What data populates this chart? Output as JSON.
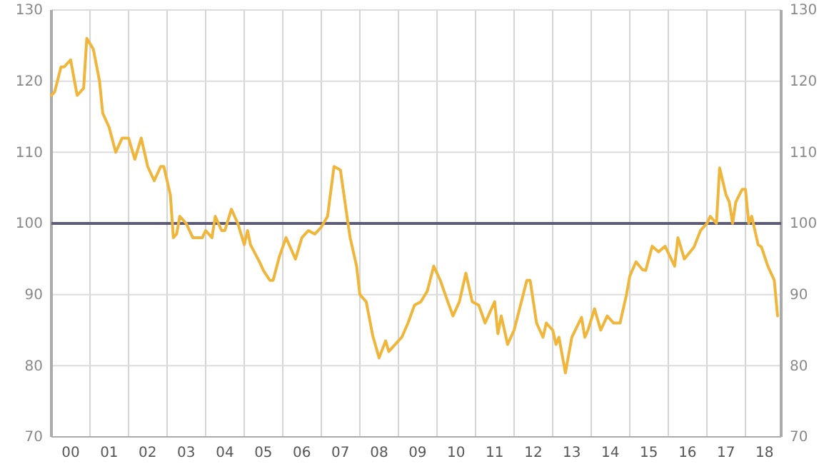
{
  "chart_data": {
    "type": "line",
    "x": [
      "2000-01",
      "2000-02",
      "2000-04",
      "2000-05",
      "2000-07",
      "2000-09",
      "2000-11",
      "2000-12",
      "2001-02",
      "2001-04",
      "2001-05",
      "2001-07",
      "2001-09",
      "2001-11",
      "2002-01",
      "2002-03",
      "2002-05",
      "2002-07",
      "2002-09",
      "2002-11",
      "2002-12",
      "2003-02",
      "2003-03",
      "2003-04",
      "2003-05",
      "2003-07",
      "2003-09",
      "2003-12",
      "2004-01",
      "2004-03",
      "2004-04",
      "2004-06",
      "2004-07",
      "2004-09",
      "2004-11",
      "2005-01",
      "2005-02",
      "2005-03",
      "2005-06",
      "2005-07",
      "2005-09",
      "2005-10",
      "2005-12",
      "2006-02",
      "2006-05",
      "2006-07",
      "2006-09",
      "2006-11",
      "2007-01",
      "2007-03",
      "2007-05",
      "2007-07",
      "2007-09",
      "2007-10",
      "2007-12",
      "2008-01",
      "2008-03",
      "2008-05",
      "2008-07",
      "2008-09",
      "2008-10",
      "2008-12",
      "2009-02",
      "2009-04",
      "2009-06",
      "2009-08",
      "2009-10",
      "2009-12",
      "2010-02",
      "2010-04",
      "2010-06",
      "2010-08",
      "2010-10",
      "2010-12",
      "2011-02",
      "2011-04",
      "2011-05",
      "2011-07",
      "2011-08",
      "2011-09",
      "2011-11",
      "2012-01",
      "2012-05",
      "2012-06",
      "2012-08",
      "2012-10",
      "2012-11",
      "2013-01",
      "2013-02",
      "2013-03",
      "2013-05",
      "2013-07",
      "2013-10",
      "2013-11",
      "2013-12",
      "2014-02",
      "2014-04",
      "2014-06",
      "2014-08",
      "2014-10",
      "2014-12",
      "2015-01",
      "2015-03",
      "2015-05",
      "2015-06",
      "2015-08",
      "2015-10",
      "2015-12",
      "2016-03",
      "2016-04",
      "2016-06",
      "2016-09",
      "2016-11",
      "2017-01",
      "2017-02",
      "2017-04",
      "2017-05",
      "2017-07",
      "2017-08",
      "2017-09",
      "2017-10",
      "2017-12",
      "2018-01",
      "2018-02",
      "2018-03",
      "2018-05",
      "2018-06",
      "2018-08",
      "2018-10",
      "2018-11"
    ],
    "series": [
      {
        "color": "#f0b63c",
        "values": [
          118,
          118.5,
          122,
          122,
          123,
          118,
          119,
          126,
          124.5,
          120,
          115.5,
          113.5,
          110,
          112,
          112,
          109,
          112,
          108,
          106,
          108,
          108,
          104,
          98,
          98.5,
          101,
          100,
          98,
          98,
          99,
          98,
          101,
          99,
          99,
          102,
          100,
          97,
          99,
          97,
          94.4,
          93.4,
          92,
          92,
          95.4,
          98,
          95,
          98,
          99,
          98.5,
          99.5,
          101,
          108,
          107.5,
          101,
          98,
          94,
          90,
          89,
          84.3,
          81.1,
          83.5,
          82,
          83,
          84,
          86,
          88.5,
          89,
          90.5,
          94,
          92,
          89.5,
          87,
          89,
          93,
          89,
          88.5,
          86,
          87,
          89,
          84.5,
          87,
          83,
          85,
          92,
          92,
          86,
          84,
          86,
          85,
          83,
          84,
          79,
          84,
          86.8,
          84,
          85,
          88,
          85,
          87,
          86,
          86,
          90,
          92.6,
          94.6,
          93.5,
          93.4,
          96.8,
          96,
          96.8,
          94,
          98,
          95,
          96.7,
          99,
          100,
          101,
          100,
          107.8,
          104,
          103,
          100,
          103,
          104.8,
          104.8,
          100,
          101,
          97,
          96.7,
          94,
          92,
          87
        ]
      }
    ],
    "xlim": [
      "2000-01-01",
      "2018-12-05"
    ],
    "xticks": [
      {
        "value": "2000-01-01",
        "label": null
      },
      {
        "value": "2000-07-01",
        "label": "00"
      },
      {
        "value": "2001-01-01",
        "label": null
      },
      {
        "value": "2001-07-01",
        "label": "01"
      },
      {
        "value": "2002-01-01",
        "label": null
      },
      {
        "value": "2002-07-01",
        "label": "02"
      },
      {
        "value": "2003-01-01",
        "label": null
      },
      {
        "value": "2003-07-01",
        "label": "03"
      },
      {
        "value": "2004-01-01",
        "label": null
      },
      {
        "value": "2004-07-01",
        "label": "04"
      },
      {
        "value": "2005-01-01",
        "label": null
      },
      {
        "value": "2005-07-01",
        "label": "05"
      },
      {
        "value": "2006-01-01",
        "label": null
      },
      {
        "value": "2006-07-01",
        "label": "06"
      },
      {
        "value": "2007-01-01",
        "label": null
      },
      {
        "value": "2007-07-01",
        "label": "07"
      },
      {
        "value": "2008-01-01",
        "label": null
      },
      {
        "value": "2008-07-01",
        "label": "08"
      },
      {
        "value": "2009-01-01",
        "label": null
      },
      {
        "value": "2009-07-01",
        "label": "09"
      },
      {
        "value": "2010-01-01",
        "label": null
      },
      {
        "value": "2010-07-01",
        "label": "10"
      },
      {
        "value": "2011-01-01",
        "label": null
      },
      {
        "value": "2011-07-01",
        "label": "11"
      },
      {
        "value": "2012-01-01",
        "label": null
      },
      {
        "value": "2012-07-01",
        "label": "12"
      },
      {
        "value": "2013-01-01",
        "label": null
      },
      {
        "value": "2013-07-01",
        "label": "13"
      },
      {
        "value": "2014-01-01",
        "label": null
      },
      {
        "value": "2014-07-01",
        "label": "14"
      },
      {
        "value": "2015-01-01",
        "label": null
      },
      {
        "value": "2015-07-01",
        "label": "15"
      },
      {
        "value": "2016-01-01",
        "label": null
      },
      {
        "value": "2016-07-01",
        "label": "16"
      },
      {
        "value": "2017-01-01",
        "label": null
      },
      {
        "value": "2017-07-01",
        "label": "17"
      },
      {
        "value": "2018-01-01",
        "label": null
      },
      {
        "value": "2018-07-01",
        "label": "18"
      }
    ],
    "ylim": [
      70,
      130
    ],
    "yticks": [
      70,
      80,
      90,
      100,
      110,
      120,
      130
    ],
    "y2lim": [
      70,
      130
    ],
    "y2ticks": [
      70,
      80,
      90,
      100,
      110,
      120,
      130
    ],
    "ref_lines": [
      {
        "axis": "y",
        "value": 100,
        "color": "#5c5c7a"
      }
    ],
    "grid": true
  }
}
